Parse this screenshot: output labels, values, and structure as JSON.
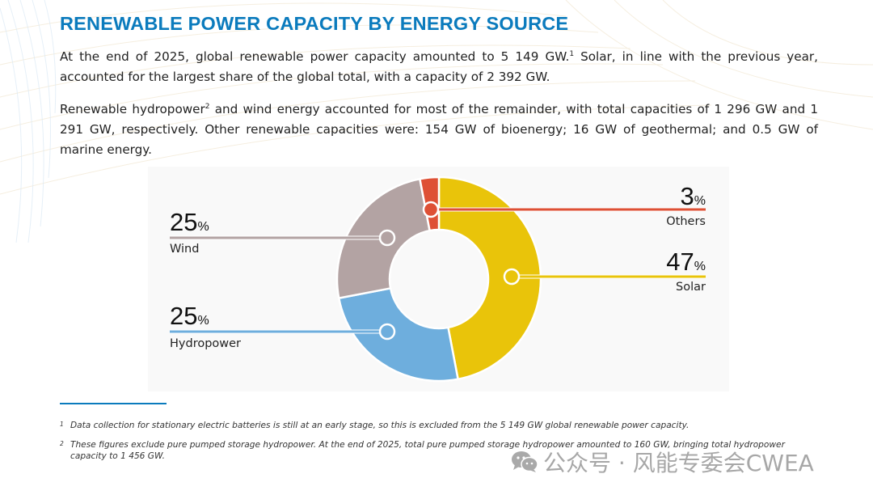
{
  "page": {
    "title": "RENEWABLE POWER CAPACITY BY ENERGY SOURCE",
    "paragraph1": {
      "before_sup": "At the end of 2025, global renewable power capacity amounted to 5 149 GW.",
      "sup": "1",
      "after_sup": " Solar, in line with the previous year, accounted for the largest share of the global total, with a capacity of 2 392 GW."
    },
    "paragraph2": {
      "before_sup": "Renewable hydropower",
      "sup": "2",
      "after_sup": " and wind energy accounted for most of the remainder, with total capacities of 1 296 GW and 1 291 GW, respectively. Other renewable capacities were: 154 GW of bioenergy; 16 GW of geothermal; and 0.5 GW of marine energy."
    },
    "footnotes": [
      {
        "num": "1",
        "text": "Data collection for stationary electric batteries is still at an early stage, so this is excluded from the 5 149 GW global renewable power capacity."
      },
      {
        "num": "2",
        "text": "These figures exclude pure pumped storage hydropower. At the end of 2025, total pure pumped storage hydropower amounted to 160 GW, bringing total hydropower capacity to 1 456 GW."
      }
    ],
    "watermark": {
      "icon": "wechat-icon",
      "text": "公众号 · 风能专委会CWEA"
    }
  },
  "chart_data": {
    "type": "pie",
    "variant": "donut",
    "title": "",
    "start": "top",
    "direction": "clockwise",
    "unit_suffix": "%",
    "slices": [
      {
        "name": "Solar",
        "value": 47,
        "color": "#e9c40a",
        "label_side": "right"
      },
      {
        "name": "Hydropower",
        "value": 25,
        "color": "#6eaedd",
        "label_side": "left"
      },
      {
        "name": "Wind",
        "value": 25,
        "color": "#b3a3a3",
        "label_side": "left"
      },
      {
        "name": "Others",
        "value": 3,
        "color": "#de5035",
        "label_side": "right"
      }
    ]
  },
  "colors": {
    "title": "#0b7bbd",
    "chart_background": "#f9f9f9",
    "footnote_rule": "#0b7bbd"
  }
}
